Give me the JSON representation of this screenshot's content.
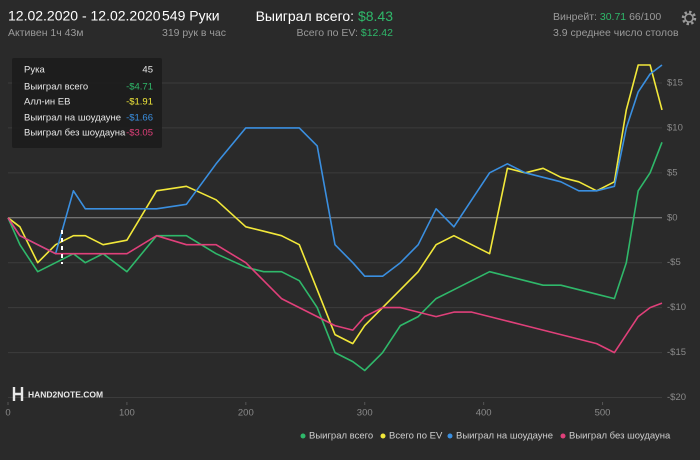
{
  "header": {
    "date_range": "12.02.2020 - 12.02.2020",
    "active": "Активен 1ч 43м",
    "hands": "549 Руки",
    "hands_per_hour": "319 рук в час",
    "won_label": "Выиграл всего:",
    "won_value": "$8.43",
    "ev_label": "Всего по EV:",
    "ev_value": "$12.42",
    "winrate_label": "Винрейт:",
    "winrate_value": "30.71",
    "winrate_count": "66/100",
    "tables": "3.9 среднее число столов"
  },
  "tooltip": {
    "rows": [
      [
        "Рука",
        "45"
      ],
      [
        "Выиграл всего",
        "-$4.71"
      ],
      [
        "Алл-ин EB",
        "-$1.91"
      ],
      [
        "Выиграл на шоудауне",
        "-$1.66"
      ],
      [
        "Выиграл без шоудауна",
        "-$3.05"
      ]
    ]
  },
  "logo": "HAND2NOTE.COM",
  "chart_data": {
    "type": "line",
    "x": [
      0,
      10,
      25,
      40,
      55,
      65,
      80,
      100,
      125,
      150,
      175,
      200,
      215,
      230,
      245,
      260,
      275,
      290,
      300,
      315,
      330,
      345,
      360,
      375,
      390,
      405,
      420,
      435,
      450,
      465,
      480,
      495,
      510,
      520,
      530,
      540,
      550
    ],
    "xlim": [
      0,
      550
    ],
    "xticks": [
      0,
      100,
      200,
      300,
      400,
      500
    ],
    "ylim": [
      -20.5,
      18
    ],
    "yticks": [
      {
        "value": 15,
        "label": "$15"
      },
      {
        "value": 10,
        "label": "$10"
      },
      {
        "value": 5,
        "label": "$5"
      },
      {
        "value": 0,
        "label": "$0"
      },
      {
        "value": -5,
        "label": "-$5"
      },
      {
        "value": -10,
        "label": "-$10"
      },
      {
        "value": -15,
        "label": "-$15"
      },
      {
        "value": -20,
        "label": "-$20"
      }
    ],
    "grid": true,
    "series": [
      {
        "name": "Выиграл всего",
        "color": "#2fb86a",
        "values": [
          0,
          -3,
          -6,
          -5,
          -4,
          -5,
          -4,
          -6,
          -2,
          -2,
          -4,
          -5.5,
          -6,
          -6,
          -7,
          -10,
          -15,
          -16,
          -17,
          -15,
          -12,
          -11,
          -9,
          -8,
          -7,
          -6,
          -6.5,
          -7,
          -7.5,
          -7.5,
          -8,
          -8.5,
          -9,
          -5,
          3,
          5,
          8.4
        ]
      },
      {
        "name": "Всего по EV",
        "color": "#f2e83a",
        "values": [
          0,
          -1,
          -5,
          -3,
          -2,
          -2,
          -3,
          -2.5,
          3,
          3.5,
          2,
          -1,
          -1.5,
          -2,
          -3,
          -8,
          -13,
          -14,
          -12,
          -10,
          -8,
          -6,
          -3,
          -2,
          -3,
          -4,
          5.5,
          5,
          5.5,
          4.5,
          4,
          3,
          4,
          12,
          17,
          17,
          12
        ]
      },
      {
        "name": "Выиграл на шоудауне",
        "color": "#3a8fe0",
        "values": [
          0,
          -2,
          -3,
          -4,
          3,
          1,
          1,
          1,
          1,
          1.5,
          6,
          10,
          10,
          10,
          10,
          8,
          -3,
          -5,
          -6.5,
          -6.5,
          -5,
          -3,
          1,
          -1,
          2,
          5,
          6,
          5,
          4.5,
          4,
          3,
          3,
          3.5,
          10,
          14,
          16,
          17
        ]
      },
      {
        "name": "Выиграл без шоудауна",
        "color": "#e0407a",
        "values": [
          0,
          -2,
          -3,
          -4,
          -4,
          -4,
          -4,
          -4,
          -2,
          -3,
          -3,
          -5,
          -7,
          -9,
          -10,
          -11,
          -12,
          -12.5,
          -11,
          -10,
          -10,
          -10.5,
          -11,
          -10.5,
          -10.5,
          -11,
          -11.5,
          -12,
          -12.5,
          -13,
          -13.5,
          -14,
          -15,
          -13,
          -11,
          -10,
          -9.5
        ]
      }
    ]
  }
}
